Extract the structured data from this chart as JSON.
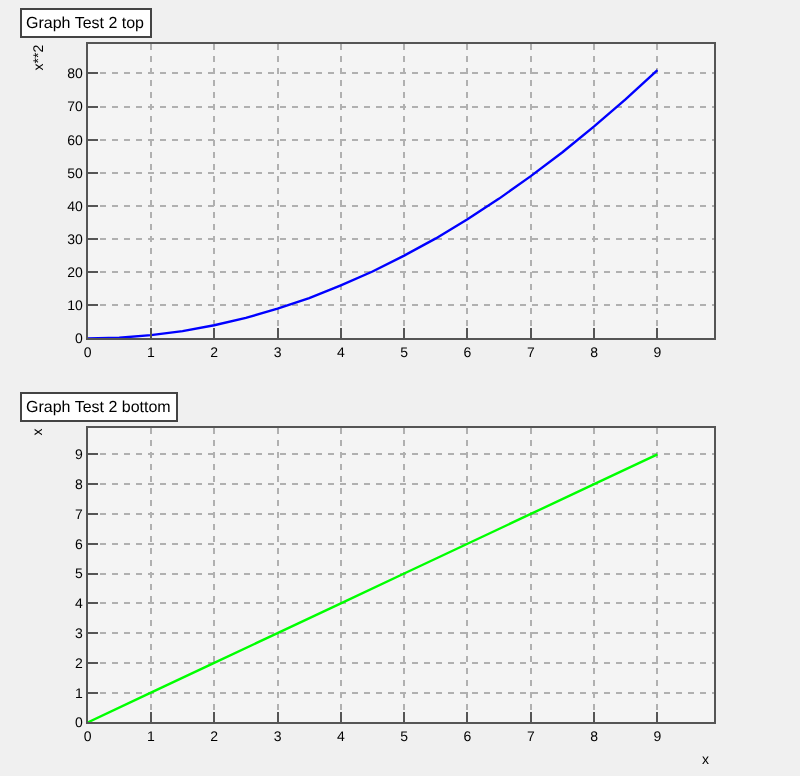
{
  "chart_data": [
    {
      "type": "line",
      "title": "Graph Test 2 top",
      "ylabel": "x**2",
      "x": [
        0,
        0.5,
        1,
        1.5,
        2,
        2.5,
        3,
        3.5,
        4,
        4.5,
        5,
        5.5,
        6,
        6.5,
        7,
        7.5,
        8,
        8.5,
        9
      ],
      "series": [
        {
          "color": "#0000ff",
          "values": [
            0,
            0.2,
            1,
            2.2,
            4,
            6.2,
            9,
            12.2,
            16,
            20.2,
            25,
            30.2,
            36,
            42.2,
            49,
            56.2,
            64,
            72.2,
            81
          ]
        }
      ],
      "xlim": [
        0,
        9.9
      ],
      "xticks": [
        0,
        1,
        2,
        3,
        4,
        5,
        6,
        7,
        8,
        9
      ],
      "ylim": [
        0,
        89
      ],
      "yticks": [
        0,
        10,
        20,
        30,
        40,
        50,
        60,
        70,
        80
      ],
      "grid": true,
      "marker": "none",
      "line_style": "solid"
    },
    {
      "type": "line",
      "title": "Graph Test 2 bottom",
      "xlabel": "x",
      "ylabel": "x",
      "x": [
        0,
        1,
        2,
        3,
        4,
        5,
        6,
        7,
        8,
        9
      ],
      "series": [
        {
          "color": "#00ff00",
          "values": [
            0,
            1,
            2,
            3,
            4,
            5,
            6,
            7,
            8,
            9
          ]
        }
      ],
      "xlim": [
        0,
        9.9
      ],
      "xticks": [
        0,
        1,
        2,
        3,
        4,
        5,
        6,
        7,
        8,
        9
      ],
      "ylim": [
        0,
        9.9
      ],
      "yticks": [
        0,
        1,
        2,
        3,
        4,
        5,
        6,
        7,
        8,
        9
      ],
      "grid": true,
      "marker": "none",
      "line_style": "solid"
    }
  ]
}
